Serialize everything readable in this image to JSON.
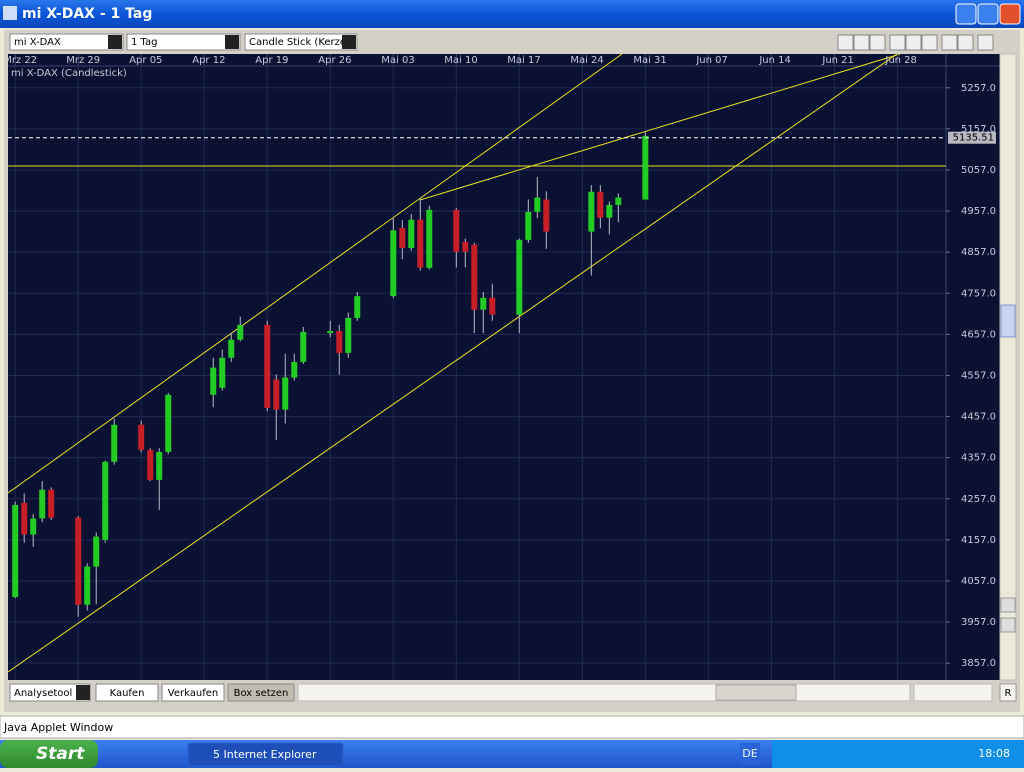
{
  "window": {
    "title": "mi X-DAX - 1 Tag"
  },
  "toolbar": {
    "symbol": "mi X-DAX",
    "interval": "1 Tag",
    "chart_style": "Candle Stick (Kerze"
  },
  "chart_data": {
    "type": "candlestick",
    "title": "mi X-DAX (Candlestick)",
    "x": [
      0,
      1,
      2,
      3,
      4,
      7,
      8,
      9,
      10,
      11,
      14,
      15,
      16,
      17,
      22,
      23,
      24,
      25,
      28,
      29,
      30,
      31,
      32,
      35,
      36,
      37,
      38,
      42,
      43,
      44,
      45,
      46,
      49,
      50,
      51,
      52,
      53,
      56,
      57,
      58,
      59,
      64,
      65,
      66,
      67,
      70
    ],
    "open": [
      4018,
      4247,
      4170,
      4209,
      4279,
      4211,
      3999,
      4092,
      4157,
      4347,
      4437,
      4376,
      4303,
      4371,
      4510,
      4527,
      4600,
      4644,
      4680,
      4547,
      4474,
      4552,
      4590,
      4660,
      4665,
      4612,
      4697,
      4750,
      4916,
      4867,
      4936,
      4819,
      4960,
      4882,
      4875,
      4717,
      4746,
      4705,
      4887,
      4955,
      4985,
      4907,
      5004,
      4941,
      4972,
      4985
    ],
    "high": [
      4250,
      4270,
      4220,
      4300,
      4285,
      4215,
      4100,
      4175,
      4350,
      4452,
      4447,
      4380,
      4380,
      4515,
      4600,
      4620,
      4660,
      4700,
      4690,
      4560,
      4610,
      4610,
      4675,
      4690,
      4680,
      4710,
      4760,
      4940,
      4935,
      4950,
      4990,
      4970,
      4965,
      4890,
      4880,
      4760,
      4780,
      4890,
      4985,
      5040,
      5005,
      5020,
      5020,
      4980,
      5000,
      5150
    ],
    "low": [
      4015,
      4150,
      4140,
      4200,
      4205,
      3970,
      3985,
      4000,
      4150,
      4340,
      4370,
      4300,
      4230,
      4365,
      4480,
      4520,
      4590,
      4640,
      4470,
      4400,
      4440,
      4545,
      4585,
      4650,
      4559,
      4600,
      4690,
      4745,
      4840,
      4860,
      4812,
      4815,
      4820,
      4820,
      4660,
      4660,
      4690,
      4660,
      4880,
      4940,
      4865,
      4800,
      4915,
      4900,
      4930,
      4985
    ],
    "close": [
      4242,
      4170,
      4209,
      4279,
      4211,
      3999,
      4092,
      4165,
      4347,
      4437,
      4376,
      4303,
      4371,
      4510,
      4576,
      4600,
      4644,
      4680,
      4478,
      4474,
      4552,
      4590,
      4663,
      4665,
      4612,
      4697,
      4750,
      4910,
      4867,
      4936,
      4819,
      4960,
      4858,
      4858,
      4717,
      4746,
      4705,
      4887,
      4955,
      4990,
      4907,
      5004,
      4941,
      4972,
      4990,
      5140
    ],
    "up_color": "#22cc22",
    "down_color": "#c81e28",
    "xlim": [
      -0.8,
      103.4
    ],
    "xticks": [
      {
        "value": 0,
        "label": "Mrz 22"
      },
      {
        "value": 7,
        "label": "Mrz 29"
      },
      {
        "value": 14,
        "label": "Apr 05"
      },
      {
        "value": 21,
        "label": "Apr 12"
      },
      {
        "value": 28,
        "label": "Apr 19"
      },
      {
        "value": 35,
        "label": "Apr 26"
      },
      {
        "value": 42,
        "label": "Mai 03"
      },
      {
        "value": 49,
        "label": "Mai 10"
      },
      {
        "value": 56,
        "label": "Mai 17"
      },
      {
        "value": 63,
        "label": "Mai 24"
      },
      {
        "value": 70,
        "label": "Mai 31"
      },
      {
        "value": 77,
        "label": "Jun 07"
      },
      {
        "value": 84,
        "label": "Jun 14"
      },
      {
        "value": 91,
        "label": "Jun 21"
      },
      {
        "value": 98,
        "label": "Jun 28"
      }
    ],
    "ylim": [
      3816,
      5310
    ],
    "yticks": [
      {
        "value": 5257,
        "label": "5257.0"
      },
      {
        "value": 5157,
        "label": "5157.0"
      },
      {
        "value": 5057,
        "label": "5057.0"
      },
      {
        "value": 4957,
        "label": "4957.0"
      },
      {
        "value": 4857,
        "label": "4857.0"
      },
      {
        "value": 4757,
        "label": "4757.0"
      },
      {
        "value": 4657,
        "label": "4657.0"
      },
      {
        "value": 4557,
        "label": "4557.0"
      },
      {
        "value": 4457,
        "label": "4457.0"
      },
      {
        "value": 4357,
        "label": "4357.0"
      },
      {
        "value": 4257,
        "label": "4257.0"
      },
      {
        "value": 4157,
        "label": "4157.0"
      },
      {
        "value": 4057,
        "label": "4057.0"
      },
      {
        "value": 3957,
        "label": "3957.0"
      },
      {
        "value": 3857,
        "label": "3857.0"
      }
    ],
    "grid": true,
    "last_price": 5135.51
  },
  "bottom_bar": {
    "buttons": [
      "Analysetool",
      "Kaufen",
      "Verkaufen",
      "Box setzen"
    ],
    "right_button": "R"
  },
  "status_bar": "Java Applet Window",
  "taskbar": {
    "start": "Start",
    "task": "5 Internet Explorer",
    "language": "DE",
    "clock": "18:08"
  }
}
